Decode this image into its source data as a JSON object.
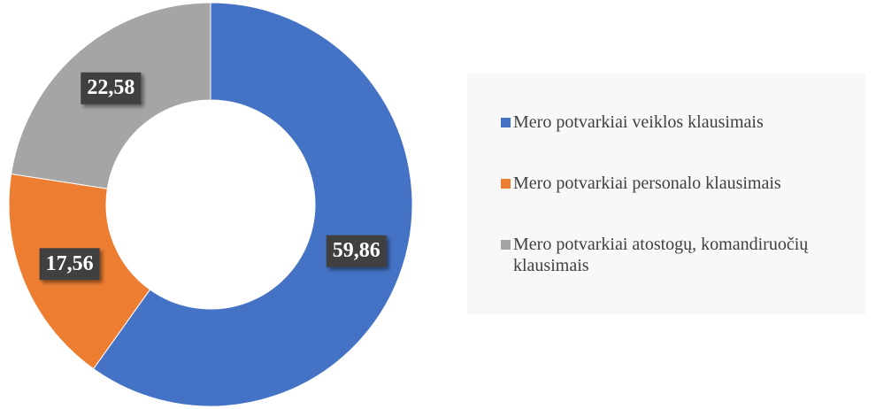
{
  "chart_data": {
    "type": "donut",
    "categories": [
      "Mero potvarkiai veiklos klausimais",
      "Mero potvarkiai personalo klausimais",
      "Mero potvarkiai atostogų, komandiruočių klausimais"
    ],
    "values": [
      59.86,
      17.56,
      22.58
    ],
    "value_labels": [
      "59,86",
      "17,56",
      "22,58"
    ],
    "colors": [
      "#4472c4",
      "#ed7d31",
      "#a5a5a5"
    ],
    "legend": "right"
  }
}
